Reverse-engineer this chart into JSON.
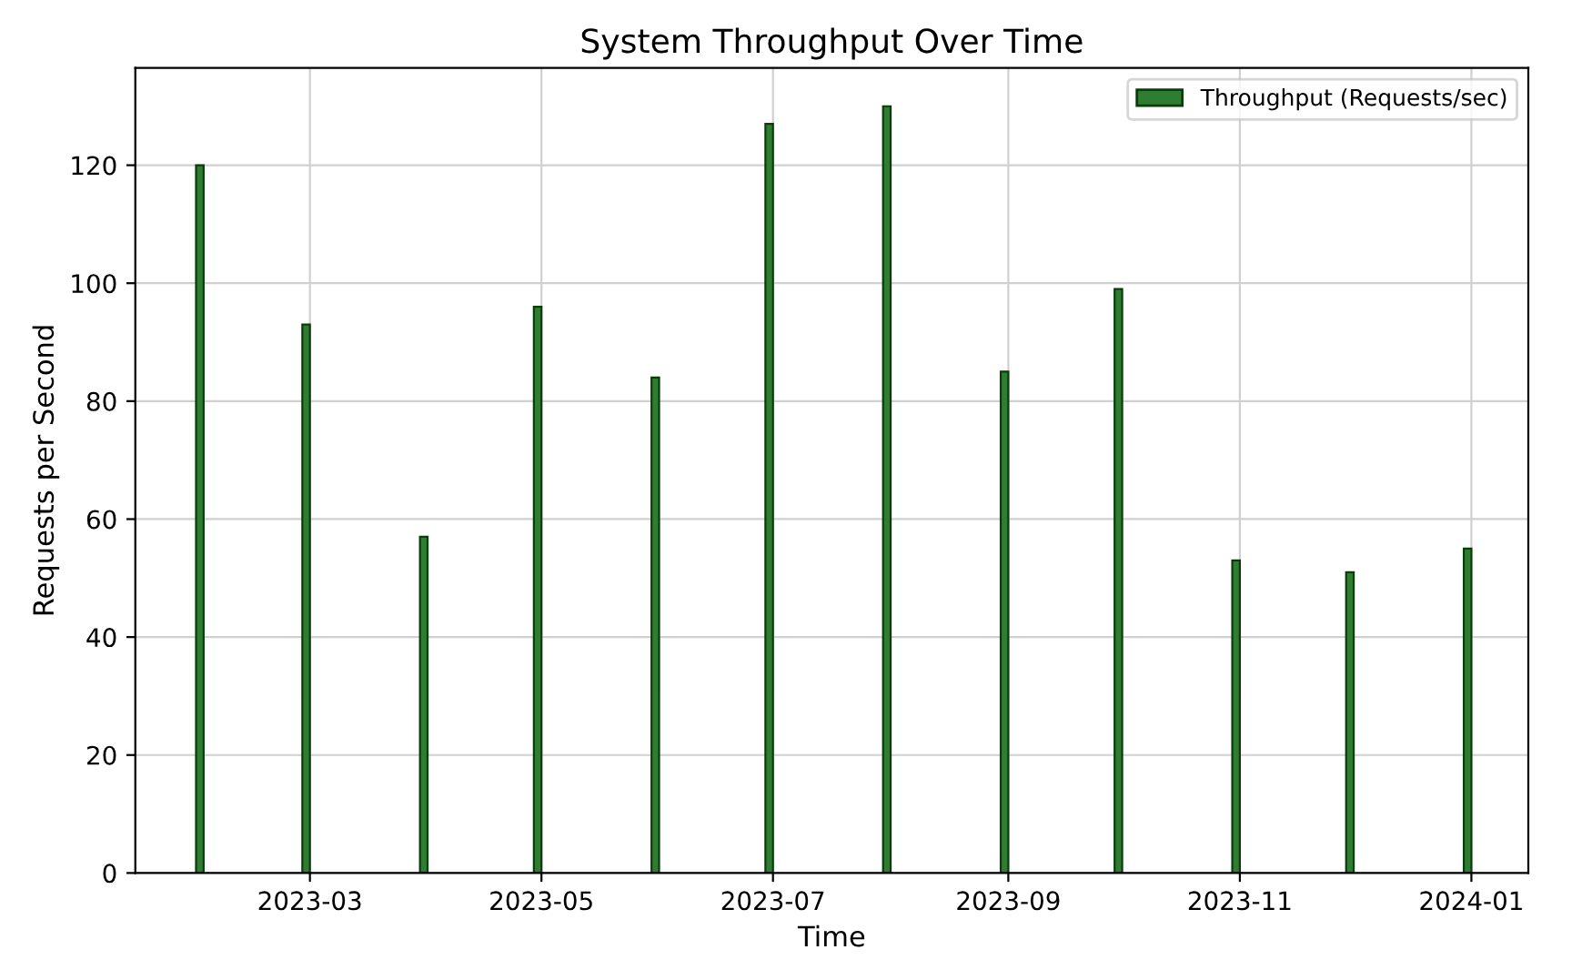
{
  "chart_data": {
    "type": "bar",
    "title": "System Throughput Over Time",
    "xlabel": "Time",
    "ylabel": "Requests per Second",
    "x": [
      "2023-01-31",
      "2023-02-28",
      "2023-03-31",
      "2023-04-30",
      "2023-05-31",
      "2023-06-30",
      "2023-07-31",
      "2023-08-31",
      "2023-09-30",
      "2023-10-31",
      "2023-11-30",
      "2023-12-31"
    ],
    "series": [
      {
        "name": "Throughput (Requests/sec)",
        "color": "#2f7d32",
        "values": [
          120,
          93,
          57,
          96,
          84,
          127,
          130,
          85,
          99,
          53,
          51,
          55
        ]
      }
    ],
    "xlim": [
      "2023-01-14",
      "2024-01-16"
    ],
    "xticks": [
      "2023-03",
      "2023-05",
      "2023-07",
      "2023-09",
      "2023-11",
      "2024-01"
    ],
    "ylim": [
      0,
      136.5
    ],
    "yticks": [
      0,
      20,
      40,
      60,
      80,
      100,
      120
    ],
    "grid": true,
    "legend": "top right"
  }
}
